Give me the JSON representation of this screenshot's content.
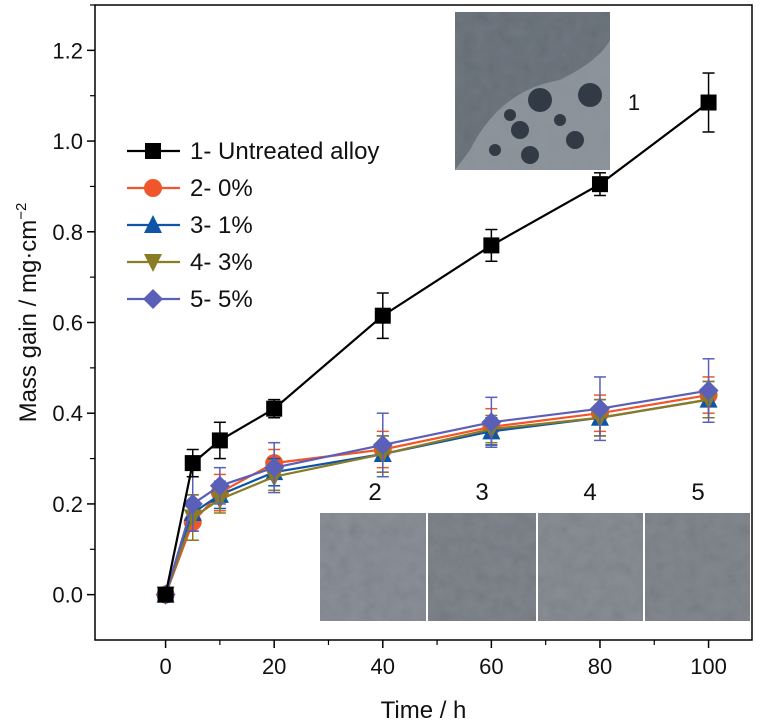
{
  "chart_data": {
    "type": "line",
    "xlabel": "Time / h",
    "ylabel": "Mass gain / mg·cm",
    "ylabel_sup": "−2",
    "xlim": [
      -13,
      108
    ],
    "ylim": [
      -0.1,
      1.3
    ],
    "xticks": [
      0,
      20,
      40,
      60,
      80,
      100
    ],
    "xtick_labels": [
      "0",
      "20",
      "40",
      "60",
      "80",
      "100"
    ],
    "yticks": [
      0.0,
      0.2,
      0.4,
      0.6,
      0.8,
      1.0,
      1.2
    ],
    "ytick_labels": [
      "0.0",
      "0.2",
      "0.4",
      "0.6",
      "0.8",
      "1.0",
      "1.2"
    ],
    "grid": false,
    "legend_position": "top-left",
    "x": [
      0,
      5,
      10,
      20,
      40,
      60,
      80,
      100
    ],
    "series": [
      {
        "name": "1- Untreated alloy",
        "color": "#000000",
        "marker": "square",
        "values": [
          0,
          0.29,
          0.34,
          0.41,
          0.615,
          0.77,
          0.905,
          1.085
        ],
        "errors": [
          0,
          0.03,
          0.04,
          0.02,
          0.05,
          0.035,
          0.025,
          0.065
        ]
      },
      {
        "name": "2- 0%",
        "color": "#f0562a",
        "marker": "circle",
        "values": [
          0,
          0.16,
          0.225,
          0.29,
          0.32,
          0.37,
          0.4,
          0.44
        ],
        "errors": [
          0,
          0.04,
          0.04,
          0.03,
          0.04,
          0.04,
          0.04,
          0.04
        ]
      },
      {
        "name": "3- 1%",
        "color": "#0e55a8",
        "marker": "triangle-up",
        "values": [
          0,
          0.18,
          0.22,
          0.27,
          0.31,
          0.36,
          0.39,
          0.43
        ],
        "errors": [
          0,
          0.04,
          0.03,
          0.03,
          0.04,
          0.03,
          0.04,
          0.04
        ]
      },
      {
        "name": "4- 3%",
        "color": "#8a7b25",
        "marker": "triangle-down",
        "values": [
          0,
          0.17,
          0.21,
          0.26,
          0.31,
          0.365,
          0.39,
          0.43
        ],
        "errors": [
          0,
          0.05,
          0.03,
          0.03,
          0.04,
          0.03,
          0.04,
          0.04
        ]
      },
      {
        "name": "5- 5%",
        "color": "#5a5fb8",
        "marker": "diamond",
        "values": [
          0,
          0.2,
          0.24,
          0.28,
          0.33,
          0.38,
          0.41,
          0.45
        ],
        "errors": [
          0,
          0.06,
          0.04,
          0.055,
          0.07,
          0.055,
          0.07,
          0.07
        ]
      }
    ],
    "annotations": {
      "top_photo_label": "1",
      "bottom_photo_labels": [
        "2",
        "3",
        "4",
        "5"
      ]
    }
  }
}
